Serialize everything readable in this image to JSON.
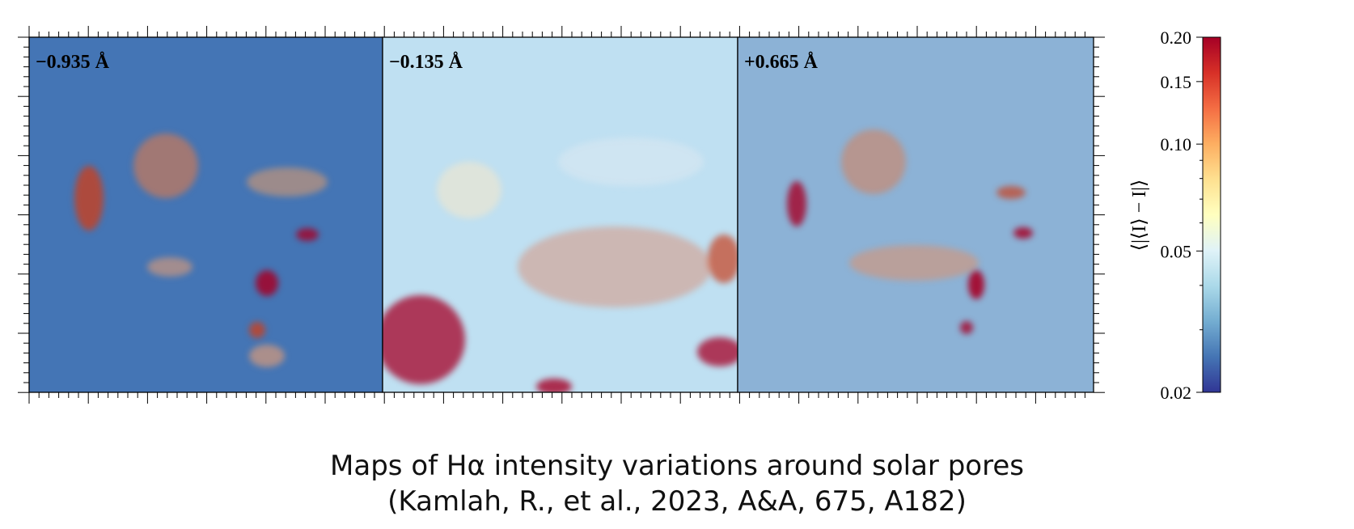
{
  "figure": {
    "panels": [
      {
        "label": "−0.935 Å",
        "style": "cool"
      },
      {
        "label": "−0.135 Å",
        "style": "warm"
      },
      {
        "label": "+0.665 Å",
        "style": "mixed"
      }
    ],
    "colorbar": {
      "scale": "log",
      "min": 0.02,
      "max": 0.2,
      "ticks": [
        {
          "value": 0.2,
          "label": "0.20"
        },
        {
          "value": 0.15,
          "label": "0.15"
        },
        {
          "value": 0.1,
          "label": "0.10"
        },
        {
          "value": 0.05,
          "label": "0.05"
        },
        {
          "value": 0.02,
          "label": "0.02"
        }
      ],
      "label": "⟨|⟨I⟩ − I|⟩",
      "colormap": [
        "#313695",
        "#4575b4",
        "#74add1",
        "#abd9e9",
        "#e0f3f8",
        "#ffffbf",
        "#fee090",
        "#fdae61",
        "#f46d43",
        "#d73027",
        "#a50026"
      ]
    }
  },
  "caption": {
    "line1": "Maps of Hα intensity variations around solar pores",
    "line2": "(Kamlah, R., et al., 2023, A&A, 675, A182)"
  }
}
